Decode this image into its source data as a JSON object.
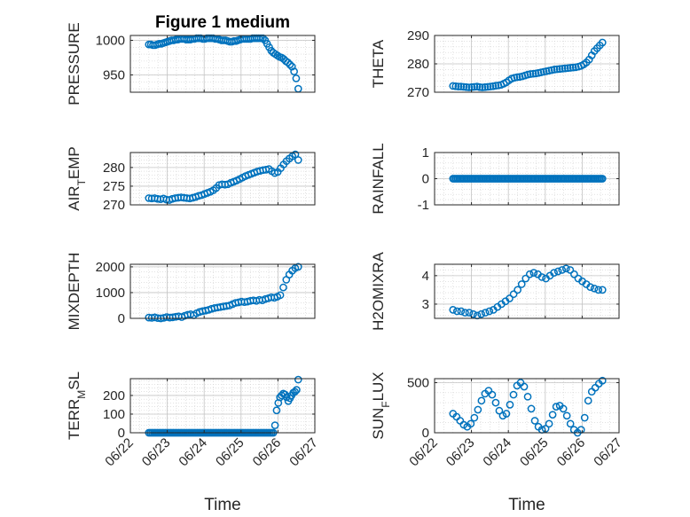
{
  "figure": {
    "title": "Figure 1 medium"
  },
  "colors": {
    "marker": "#0072BD",
    "axis": "#262626",
    "grid": "#d0d0d0",
    "background": "#ffffff"
  },
  "chart_data": [
    {
      "type": "scatter",
      "id": "pressure",
      "ylabel": "PRESSURE",
      "ylabel_sub": "",
      "ylim": [
        925,
        1007
      ],
      "yticks": [
        950,
        1000
      ],
      "ytick_labels": [
        "950",
        "1000"
      ],
      "xlim": [
        "06/22",
        "06/27"
      ],
      "xticks": [
        "06/22",
        "06/23",
        "06/24",
        "06/25",
        "06/26",
        "06/27"
      ],
      "x_day_start": 22.5,
      "x_day_end": 26.55,
      "values": [
        994,
        994,
        993,
        993,
        994,
        995,
        995,
        996,
        997,
        998,
        999,
        1000,
        1000,
        1001,
        1001,
        1002,
        1002,
        1002,
        1001,
        1001,
        1001,
        1002,
        1002,
        1003,
        1003,
        1003,
        1002,
        1002,
        1003,
        1003,
        1003,
        1003,
        1002,
        1002,
        1001,
        1000,
        1000,
        1000,
        999,
        998,
        998,
        999,
        999,
        1000,
        1001,
        1002,
        1002,
        1002,
        1002,
        1002,
        1003,
        1003,
        1003,
        1003,
        1003,
        1003,
        1000,
        995,
        990,
        985,
        982,
        980,
        978,
        976,
        975,
        973,
        970,
        968,
        965,
        962,
        955,
        945,
        930
      ]
    },
    {
      "type": "scatter",
      "id": "theta",
      "ylabel": "THETA",
      "ylabel_sub": "",
      "ylim": [
        270,
        290
      ],
      "yticks": [
        270,
        280,
        290
      ],
      "ytick_labels": [
        "270",
        "280",
        "290"
      ],
      "xlim": [
        "06/22",
        "06/27"
      ],
      "xticks": [
        "06/22",
        "06/23",
        "06/24",
        "06/25",
        "06/26",
        "06/27"
      ],
      "x_day_start": 22.5,
      "x_day_end": 26.55,
      "values": [
        272.2,
        272.1,
        272.0,
        272.0,
        271.9,
        271.8,
        271.7,
        271.8,
        271.9,
        272.0,
        271.8,
        271.7,
        271.8,
        271.9,
        272.0,
        272.1,
        272.3,
        272.4,
        272.6,
        273.0,
        273.5,
        274.2,
        274.8,
        275.1,
        275.3,
        275.4,
        275.6,
        275.9,
        276.2,
        276.4,
        276.5,
        276.6,
        276.8,
        277.0,
        277.2,
        277.4,
        277.6,
        277.8,
        278.0,
        278.1,
        278.2,
        278.3,
        278.4,
        278.5,
        278.6,
        278.7,
        278.8,
        279.0,
        279.3,
        279.8,
        280.5,
        281.5,
        283.0,
        284.5,
        285.5,
        286.5,
        287.5
      ]
    },
    {
      "type": "scatter",
      "id": "air_temp",
      "ylabel": "AIR",
      "ylabel_sub": "T",
      "ylabel_tail": "EMP",
      "ylim": [
        270,
        284
      ],
      "yticks": [
        270,
        275,
        280
      ],
      "ytick_labels": [
        "270",
        "275",
        "280"
      ],
      "xlim": [
        "06/22",
        "06/27"
      ],
      "xticks": [
        "06/22",
        "06/23",
        "06/24",
        "06/25",
        "06/26",
        "06/27"
      ],
      "x_day_start": 22.5,
      "x_day_end": 26.55,
      "values": [
        271.8,
        271.7,
        271.8,
        271.6,
        271.5,
        271.7,
        271.4,
        271.3,
        271.6,
        271.8,
        271.9,
        272.0,
        271.9,
        271.8,
        271.7,
        271.9,
        272.1,
        272.4,
        272.6,
        272.9,
        273.2,
        273.5,
        273.9,
        274.5,
        275.3,
        275.5,
        275.4,
        275.5,
        275.9,
        276.2,
        276.5,
        276.9,
        277.3,
        277.7,
        278.0,
        278.3,
        278.6,
        278.9,
        279.1,
        279.3,
        279.4,
        279.6,
        279.0,
        278.5,
        278.8,
        279.8,
        280.8,
        281.7,
        282.4,
        283.0,
        283.5,
        282.0
      ]
    },
    {
      "type": "scatter",
      "id": "rainfall",
      "ylabel": "RAINFALL",
      "ylabel_sub": "",
      "ylim": [
        -1,
        1
      ],
      "yticks": [
        -1,
        0,
        1
      ],
      "ytick_labels": [
        "-1",
        "0",
        "1"
      ],
      "xlim": [
        "06/22",
        "06/27"
      ],
      "xticks": [
        "06/22",
        "06/23",
        "06/24",
        "06/25",
        "06/26",
        "06/27"
      ],
      "x_day_start": 22.5,
      "x_day_end": 26.55,
      "values": [
        0,
        0,
        0,
        0,
        0,
        0,
        0,
        0,
        0,
        0,
        0,
        0,
        0,
        0,
        0,
        0,
        0,
        0,
        0,
        0,
        0,
        0,
        0,
        0,
        0,
        0,
        0,
        0,
        0,
        0,
        0,
        0,
        0,
        0,
        0,
        0,
        0,
        0,
        0,
        0,
        0,
        0,
        0,
        0,
        0,
        0,
        0,
        0,
        0,
        0,
        0,
        0,
        0,
        0,
        0,
        0,
        0,
        0,
        0,
        0,
        0,
        0,
        0,
        0,
        0,
        0,
        0,
        0,
        0,
        0,
        0,
        0,
        0,
        0,
        0,
        0,
        0,
        0,
        0,
        0,
        0,
        0,
        0,
        0,
        0,
        0,
        0,
        0,
        0,
        0,
        0,
        0,
        0,
        0,
        0,
        0,
        0,
        0,
        0,
        0
      ]
    },
    {
      "type": "scatter",
      "id": "mixdepth",
      "ylabel": "MIXDEPTH",
      "ylabel_sub": "",
      "ylim": [
        0,
        2100
      ],
      "yticks": [
        0,
        1000,
        2000
      ],
      "ytick_labels": [
        "0",
        "1000",
        "2000"
      ],
      "xlim": [
        "06/22",
        "06/27"
      ],
      "xticks": [
        "06/22",
        "06/23",
        "06/24",
        "06/25",
        "06/26",
        "06/27"
      ],
      "x_day_start": 22.5,
      "x_day_end": 26.55,
      "values": [
        30,
        20,
        40,
        10,
        0,
        20,
        50,
        30,
        40,
        60,
        80,
        50,
        100,
        140,
        160,
        120,
        200,
        250,
        280,
        300,
        330,
        370,
        400,
        420,
        440,
        460,
        480,
        500,
        550,
        600,
        620,
        650,
        630,
        650,
        680,
        700,
        680,
        720,
        700,
        750,
        780,
        820,
        800,
        840,
        900,
        1200,
        1500,
        1700,
        1850,
        1950,
        2000
      ]
    },
    {
      "type": "scatter",
      "id": "h2omixra",
      "ylabel": "H2OMIXRA",
      "ylabel_sub": "",
      "ylim": [
        2.5,
        4.4
      ],
      "yticks": [
        3,
        4
      ],
      "ytick_labels": [
        "3",
        "4"
      ],
      "xlim": [
        "06/22",
        "06/27"
      ],
      "xticks": [
        "06/22",
        "06/23",
        "06/24",
        "06/25",
        "06/26",
        "06/27"
      ],
      "x_day_start": 22.5,
      "x_day_end": 26.55,
      "values": [
        2.8,
        2.75,
        2.75,
        2.7,
        2.7,
        2.65,
        2.6,
        2.65,
        2.7,
        2.75,
        2.8,
        2.9,
        3.0,
        3.1,
        3.2,
        3.35,
        3.5,
        3.7,
        3.9,
        4.05,
        4.1,
        4.05,
        3.95,
        3.9,
        4.0,
        4.1,
        4.15,
        4.2,
        4.25,
        4.2,
        4.05,
        3.9,
        3.8,
        3.7,
        3.6,
        3.55,
        3.5,
        3.5
      ]
    },
    {
      "type": "scatter",
      "id": "terr_msl",
      "ylabel": "TERR",
      "ylabel_sub": "M",
      "ylabel_tail": "SL",
      "ylim": [
        0,
        290
      ],
      "yticks": [
        0,
        100,
        200
      ],
      "ytick_labels": [
        "0",
        "100",
        "200"
      ],
      "xlim": [
        "06/22",
        "06/27"
      ],
      "xticks": [
        "06/22",
        "06/23",
        "06/24",
        "06/25",
        "06/26",
        "06/27"
      ],
      "x_day_start": 22.5,
      "x_day_end": 26.55,
      "values": [
        0,
        0,
        0,
        0,
        0,
        0,
        0,
        0,
        0,
        0,
        0,
        0,
        0,
        0,
        0,
        0,
        0,
        0,
        0,
        0,
        0,
        0,
        0,
        0,
        0,
        0,
        0,
        0,
        0,
        0,
        0,
        0,
        0,
        0,
        0,
        0,
        0,
        0,
        0,
        0,
        0,
        0,
        0,
        0,
        0,
        0,
        0,
        0,
        0,
        0,
        0,
        0,
        0,
        0,
        0,
        0,
        0,
        0,
        0,
        0,
        0,
        0,
        0,
        0,
        0,
        0,
        0,
        0,
        0,
        0,
        0,
        0,
        0,
        0,
        0,
        0,
        40,
        120,
        160,
        190,
        200,
        210,
        205,
        190,
        170,
        185,
        200,
        215,
        220,
        230,
        285
      ]
    },
    {
      "type": "scatter",
      "id": "sun_flux",
      "ylabel": "SUN",
      "ylabel_sub": "F",
      "ylabel_tail": "LUX",
      "ylim": [
        0,
        540
      ],
      "yticks": [
        0,
        500
      ],
      "ytick_labels": [
        "0",
        "500"
      ],
      "xlim": [
        "06/22",
        "06/27"
      ],
      "xticks": [
        "06/22",
        "06/23",
        "06/24",
        "06/25",
        "06/26",
        "06/27"
      ],
      "x_day_start": 22.5,
      "x_day_end": 26.55,
      "values": [
        190,
        160,
        120,
        80,
        60,
        90,
        150,
        230,
        320,
        390,
        420,
        380,
        300,
        220,
        170,
        190,
        280,
        380,
        470,
        500,
        460,
        360,
        240,
        120,
        60,
        30,
        40,
        90,
        180,
        260,
        270,
        240,
        170,
        90,
        30,
        0,
        30,
        150,
        320,
        410,
        450,
        490,
        520
      ]
    }
  ],
  "x_axis_title": "Time",
  "x_axis_title_right": "Time"
}
